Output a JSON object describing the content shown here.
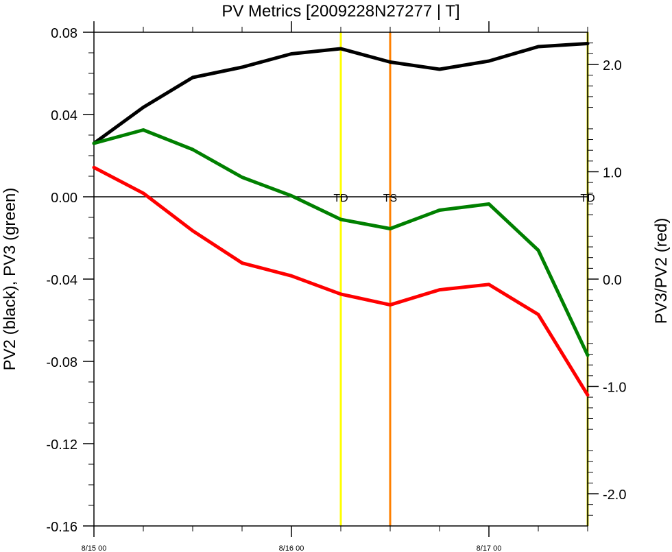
{
  "chart_data": {
    "type": "line",
    "title": "PV Metrics [2009228N27277 | T]",
    "ylabel_left": "PV2 (black), PV3 (green)",
    "ylabel_right": "PV3/PV2 (red)",
    "x_tick_labels": [
      "8/15 00",
      "8/16 00",
      "8/17 00"
    ],
    "x_tick_hours": [
      0,
      24,
      48
    ],
    "x_range_hours": [
      0,
      60
    ],
    "ylim_left": [
      -0.16,
      0.08
    ],
    "ylim_right": [
      -2.3,
      2.3
    ],
    "yticks_left": [
      -0.16,
      -0.12,
      -0.08,
      -0.04,
      0.0,
      0.04,
      0.08
    ],
    "ytick_labels_left": [
      "-0.16",
      "-0.12",
      "-0.08",
      "-0.04",
      "0.00",
      "0.04",
      "0.08"
    ],
    "yticks_right": [
      -2.0,
      -1.0,
      0.0,
      1.0,
      2.0
    ],
    "ytick_labels_right": [
      "-2.0",
      "-1.0",
      "0.0",
      "1.0",
      "2.0"
    ],
    "x_hours": [
      0,
      6,
      12,
      18,
      24,
      30,
      36,
      42,
      48,
      54,
      60
    ],
    "series": [
      {
        "axis": "left",
        "color": "#000000",
        "values": [
          0.026,
          0.0435,
          0.058,
          0.063,
          0.0695,
          0.072,
          0.0655,
          0.062,
          0.066,
          0.073,
          0.0745
        ]
      },
      {
        "axis": "left",
        "color": "#008000",
        "values": [
          0.026,
          0.0325,
          0.023,
          0.0095,
          0.0005,
          -0.011,
          -0.0155,
          -0.0065,
          -0.0035,
          -0.026,
          -0.077
        ]
      },
      {
        "axis": "right",
        "color": "#ff0000",
        "values": [
          1.04,
          0.8,
          0.45,
          0.15,
          0.03,
          -0.14,
          -0.24,
          -0.1,
          -0.05,
          -0.33,
          -1.08
        ]
      }
    ],
    "zero_line": 0.0,
    "stage_markers": [
      {
        "label": "TD",
        "hour": 30,
        "color": "#ffff00"
      },
      {
        "label": "TS",
        "hour": 36,
        "color": "#ff8000"
      },
      {
        "label": "TD",
        "hour": 60,
        "color": "#c8c800"
      }
    ]
  }
}
